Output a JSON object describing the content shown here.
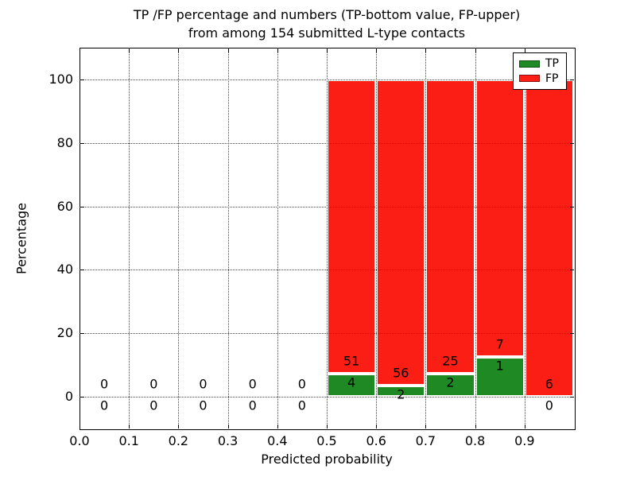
{
  "chart_data": {
    "type": "bar",
    "stacked": true,
    "title_line1": "TP /FP percentage and numbers (TP-bottom value, FP-upper)",
    "title_line2": "from among 154 submitted L-type contacts",
    "xlabel": "Predicted probability",
    "ylabel": "Percentage",
    "xlim": [
      0.0,
      1.0
    ],
    "ylim": [
      -10,
      110
    ],
    "grid": "dotted, drawn above bars",
    "legend_position": "upper right",
    "total_contacts": 154,
    "colors": {
      "tp": "#1f8a23",
      "fp": "#fa1e14",
      "grid": "#444444",
      "background": "#ffffff"
    },
    "xticks": [
      {
        "v": 0.0,
        "label": "0.0"
      },
      {
        "v": 0.1,
        "label": "0.1"
      },
      {
        "v": 0.2,
        "label": "0.2"
      },
      {
        "v": 0.3,
        "label": "0.3"
      },
      {
        "v": 0.4,
        "label": "0.4"
      },
      {
        "v": 0.5,
        "label": "0.5"
      },
      {
        "v": 0.6,
        "label": "0.6"
      },
      {
        "v": 0.7,
        "label": "0.7"
      },
      {
        "v": 0.8,
        "label": "0.8"
      },
      {
        "v": 0.9,
        "label": "0.9"
      }
    ],
    "yticks": [
      {
        "v": 0,
        "label": "0"
      },
      {
        "v": 20,
        "label": "20"
      },
      {
        "v": 40,
        "label": "40"
      },
      {
        "v": 60,
        "label": "60"
      },
      {
        "v": 80,
        "label": "80"
      },
      {
        "v": 100,
        "label": "100"
      }
    ],
    "legend": [
      {
        "label": "TP",
        "color": "#1f8a23"
      },
      {
        "label": "FP",
        "color": "#fa1e14"
      }
    ],
    "bins": [
      {
        "range": [
          0.0,
          0.1
        ],
        "tp": 0,
        "fp": 0
      },
      {
        "range": [
          0.1,
          0.2
        ],
        "tp": 0,
        "fp": 0
      },
      {
        "range": [
          0.2,
          0.3
        ],
        "tp": 0,
        "fp": 0
      },
      {
        "range": [
          0.3,
          0.4
        ],
        "tp": 0,
        "fp": 0
      },
      {
        "range": [
          0.4,
          0.5
        ],
        "tp": 0,
        "fp": 0
      },
      {
        "range": [
          0.5,
          0.6
        ],
        "tp": 4,
        "fp": 51
      },
      {
        "range": [
          0.6,
          0.7
        ],
        "tp": 2,
        "fp": 56
      },
      {
        "range": [
          0.7,
          0.8
        ],
        "tp": 2,
        "fp": 25
      },
      {
        "range": [
          0.8,
          0.9
        ],
        "tp": 1,
        "fp": 7
      },
      {
        "range": [
          0.9,
          1.0
        ],
        "tp": 0,
        "fp": 6
      }
    ]
  }
}
